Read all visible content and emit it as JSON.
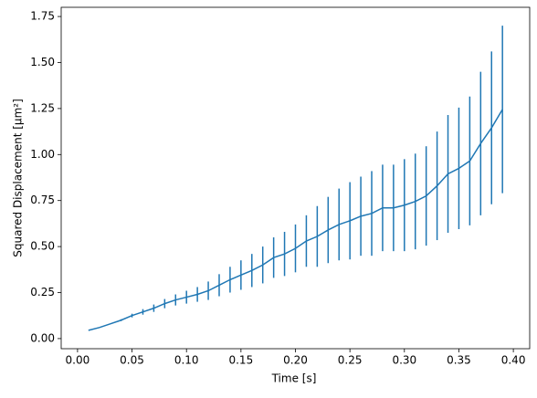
{
  "chart_data": {
    "type": "errorbar-line",
    "xlabel": "Time [s]",
    "ylabel": "Squared Displacement [μm²]",
    "x": [
      0.01,
      0.02,
      0.03,
      0.04,
      0.05,
      0.06,
      0.07,
      0.08,
      0.09,
      0.1,
      0.11,
      0.12,
      0.13,
      0.14,
      0.15,
      0.16,
      0.17,
      0.18,
      0.19,
      0.2,
      0.21,
      0.22,
      0.23,
      0.24,
      0.25,
      0.26,
      0.27,
      0.28,
      0.29,
      0.3,
      0.31,
      0.32,
      0.33,
      0.34,
      0.35,
      0.36,
      0.37,
      0.38,
      0.39
    ],
    "series": [
      {
        "color": "#1f77b4",
        "values": [
          0.045,
          0.06,
          0.08,
          0.1,
          0.125,
          0.145,
          0.165,
          0.19,
          0.21,
          0.225,
          0.24,
          0.26,
          0.29,
          0.32,
          0.345,
          0.37,
          0.4,
          0.44,
          0.46,
          0.49,
          0.53,
          0.555,
          0.59,
          0.62,
          0.64,
          0.665,
          0.68,
          0.71,
          0.71,
          0.725,
          0.745,
          0.775,
          0.83,
          0.895,
          0.925,
          0.965,
          1.06,
          1.145,
          1.245
        ],
        "errors": [
          0,
          0,
          0,
          0.005,
          0.01,
          0.015,
          0.02,
          0.025,
          0.03,
          0.035,
          0.04,
          0.05,
          0.06,
          0.07,
          0.08,
          0.09,
          0.1,
          0.11,
          0.12,
          0.13,
          0.14,
          0.165,
          0.18,
          0.195,
          0.21,
          0.215,
          0.23,
          0.235,
          0.235,
          0.25,
          0.26,
          0.27,
          0.295,
          0.32,
          0.33,
          0.35,
          0.39,
          0.415,
          0.455
        ]
      }
    ],
    "xlim": [
      -0.015,
      0.415
    ],
    "ylim": [
      -0.055,
      1.8
    ],
    "xticks": [
      {
        "value": 0,
        "label": "0.00"
      },
      {
        "value": 0.05,
        "label": "0.05"
      },
      {
        "value": 0.1,
        "label": "0.10"
      },
      {
        "value": 0.15,
        "label": "0.15"
      },
      {
        "value": 0.2,
        "label": "0.20"
      },
      {
        "value": 0.25,
        "label": "0.25"
      },
      {
        "value": 0.3,
        "label": "0.30"
      },
      {
        "value": 0.35,
        "label": "0.35"
      },
      {
        "value": 0.4,
        "label": "0.40"
      }
    ],
    "yticks": [
      {
        "value": 0,
        "label": "0.00"
      },
      {
        "value": 0.25,
        "label": "0.25"
      },
      {
        "value": 0.5,
        "label": "0.50"
      },
      {
        "value": 0.75,
        "label": "0.75"
      },
      {
        "value": 1,
        "label": "1.00"
      },
      {
        "value": 1.25,
        "label": "1.25"
      },
      {
        "value": 1.5,
        "label": "1.50"
      },
      {
        "value": 1.75,
        "label": "1.75"
      }
    ]
  }
}
